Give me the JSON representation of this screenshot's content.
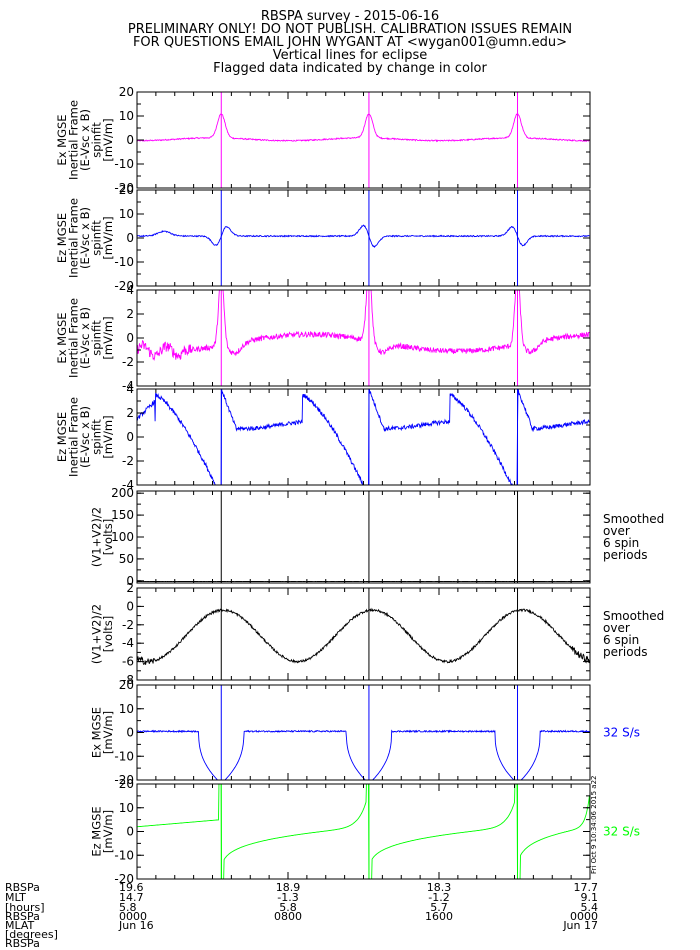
{
  "header": {
    "lines": [
      "RBSPA survey - 2015-06-16",
      "PRELIMINARY ONLY! DO NOT PUBLISH. CALIBRATION ISSUES REMAIN",
      "FOR QUESTIONS EMAIL JOHN WYGANT AT <wygan001@umn.edu>",
      "Vertical lines for eclipse",
      "Flagged data indicated by change in color"
    ]
  },
  "side_stamp": "Fri Oct 9 10:34:06 2015 a22",
  "footer": {
    "row_labels": [
      "RBSPa",
      "MLT",
      "[hours]",
      "RBSPa",
      "MLAT",
      "[degrees]",
      "RBSPa"
    ],
    "ticks": [
      {
        "lines": [
          "19.6",
          "14.7",
          "5.8",
          "0000",
          "Jun 16"
        ]
      },
      {
        "lines": [
          "18.9",
          "-1.3",
          "5.8",
          "0800",
          ""
        ]
      },
      {
        "lines": [
          "18.3",
          "-1.2",
          "5.7",
          "1600",
          ""
        ]
      },
      {
        "lines": [
          "17.7",
          "9.1",
          "5.4",
          "0000",
          "Jun 17"
        ]
      }
    ]
  },
  "chart_data": [
    {
      "type": "line",
      "ylabel": [
        "Ex MGSE",
        "Inertial Frame",
        "(E-Vsc x B)",
        "spinfit",
        "[mV/m]"
      ],
      "ylim": [
        -20,
        20
      ],
      "yticks": [
        -20,
        -10,
        0,
        10,
        20
      ],
      "color": "#ff00ff",
      "model": "A1",
      "right_label": []
    },
    {
      "type": "line",
      "ylabel": [
        "Ez MGSE",
        "Inertial Frame",
        "(E-Vsc x B)",
        "spinfit",
        "[mV/m]"
      ],
      "ylim": [
        -20,
        20
      ],
      "yticks": [
        -20,
        -10,
        0,
        10,
        20
      ],
      "color": "#0000ff",
      "model": "A2",
      "right_label": []
    },
    {
      "type": "line",
      "ylabel": [
        "Ex MGSE",
        "Inertial Frame",
        "(E-Vsc x B)",
        "spinfit",
        "[mV/m]"
      ],
      "ylim": [
        -4,
        4
      ],
      "yticks": [
        -4,
        -2,
        0,
        2,
        4
      ],
      "color": "#ff00ff",
      "model": "B1",
      "right_label": []
    },
    {
      "type": "line",
      "ylabel": [
        "Ez MGSE",
        "Inertial Frame",
        "(E-Vsc x B)",
        "spinfit",
        "[mV/m]"
      ],
      "ylim": [
        -4,
        4
      ],
      "yticks": [
        -4,
        -2,
        0,
        2,
        4
      ],
      "color": "#0000ff",
      "model": "B2",
      "right_label": []
    },
    {
      "type": "line",
      "ylabel": [
        "(V1+V2)/2",
        "[volts]"
      ],
      "ylim": [
        -5,
        205
      ],
      "yticks": [
        0,
        50,
        100,
        150,
        200
      ],
      "color": "#000000",
      "model": "C1",
      "right_label": [
        "Smoothed",
        "over",
        "6 spin",
        "periods"
      ]
    },
    {
      "type": "line",
      "ylabel": [
        "(V1+V2)/2",
        "[volts]"
      ],
      "ylim": [
        -8,
        2
      ],
      "yticks": [
        -8,
        -6,
        -4,
        -2,
        0,
        2
      ],
      "color": "#000000",
      "model": "C2",
      "right_label": [
        "Smoothed",
        "over",
        "6 spin",
        "periods"
      ]
    },
    {
      "type": "line",
      "ylabel": [
        "Ex MGSE",
        "[mV/m]"
      ],
      "ylim": [
        -20,
        20
      ],
      "yticks": [
        -20,
        -10,
        0,
        10,
        20
      ],
      "color": "#0000ff",
      "model": "D1",
      "right_label": [
        "32 S/s"
      ]
    },
    {
      "type": "line",
      "ylabel": [
        "Ez MGSE",
        "[mV/m]"
      ],
      "ylim": [
        -20,
        20
      ],
      "yticks": [
        -20,
        -10,
        0,
        10,
        20
      ],
      "color": "#00ff00",
      "model": "D2",
      "right_label": [
        "32 S/s"
      ]
    }
  ]
}
